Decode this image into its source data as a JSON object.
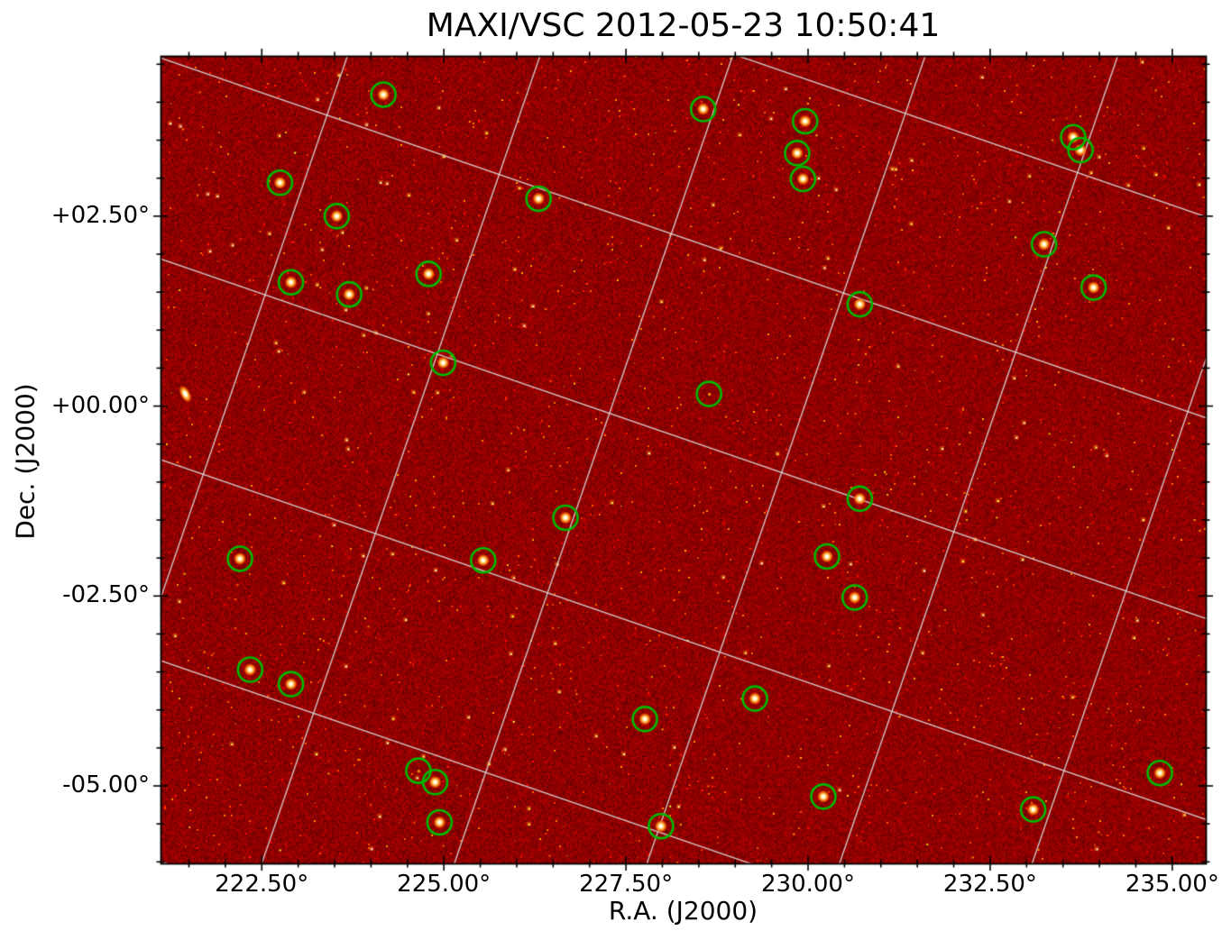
{
  "chart_data": {
    "type": "heatmap",
    "title": "MAXI/VSC 2012-05-23 10:50:41",
    "xlabel": "R.A. (J2000)",
    "ylabel": "Dec. (J2000)",
    "x_axis": {
      "range": [
        221.11,
        235.46
      ],
      "unit": "deg",
      "direction": "increasing-right",
      "major_ticks": [
        {
          "value": 222.5,
          "label": "222.50°"
        },
        {
          "value": 225.0,
          "label": "225.00°"
        },
        {
          "value": 227.5,
          "label": "227.50°"
        },
        {
          "value": 230.0,
          "label": "230.00°"
        },
        {
          "value": 232.5,
          "label": "232.50°"
        },
        {
          "value": 235.0,
          "label": "235.00°"
        }
      ],
      "minor_tick_step": 0.5
    },
    "y_axis": {
      "range": [
        -6.02,
        4.61
      ],
      "unit": "deg",
      "major_ticks": [
        {
          "value": 2.5,
          "label": "+02.50°"
        },
        {
          "value": 0.0,
          "label": "+00.00°"
        },
        {
          "value": -2.5,
          "label": "-02.50°"
        },
        {
          "value": -5.0,
          "label": "-05.00°"
        }
      ],
      "minor_tick_step": 0.5
    },
    "grid": {
      "type": "rotated-celestial",
      "angle_deg": 19,
      "spacing_deg": 2.5,
      "color": "#d9d9d9",
      "on": true
    },
    "colormap": {
      "name": "hot",
      "background_hex": "#8b0000",
      "midtone_hex": "#ff8c00",
      "peak_hex": "#ffffff"
    },
    "marker_style": {
      "shape": "circle",
      "color": "#00bb00",
      "radius_px": 13.5,
      "line_width": 2.6
    },
    "sources": [
      {
        "ra": 224.17,
        "dec": 4.1
      },
      {
        "ra": 228.56,
        "dec": 3.91
      },
      {
        "ra": 229.96,
        "dec": 3.75
      },
      {
        "ra": 229.85,
        "dec": 3.33
      },
      {
        "ra": 229.93,
        "dec": 2.99
      },
      {
        "ra": 233.64,
        "dec": 3.54
      },
      {
        "ra": 233.74,
        "dec": 3.37
      },
      {
        "ra": 222.75,
        "dec": 2.94
      },
      {
        "ra": 223.53,
        "dec": 2.5
      },
      {
        "ra": 226.3,
        "dec": 2.73
      },
      {
        "ra": 233.24,
        "dec": 2.13
      },
      {
        "ra": 233.92,
        "dec": 1.56
      },
      {
        "ra": 222.9,
        "dec": 1.63
      },
      {
        "ra": 223.7,
        "dec": 1.47
      },
      {
        "ra": 224.79,
        "dec": 1.74
      },
      {
        "ra": 230.71,
        "dec": 1.34
      },
      {
        "ra": 224.99,
        "dec": 0.57
      },
      {
        "ra": 228.64,
        "dec": 0.16,
        "faint": true
      },
      {
        "ra": 230.71,
        "dec": -1.22
      },
      {
        "ra": 226.67,
        "dec": -1.47
      },
      {
        "ra": 230.26,
        "dec": -1.98
      },
      {
        "ra": 225.54,
        "dec": -2.03
      },
      {
        "ra": 222.2,
        "dec": -2.01
      },
      {
        "ra": 230.64,
        "dec": -2.52
      },
      {
        "ra": 222.34,
        "dec": -3.47
      },
      {
        "ra": 222.9,
        "dec": -3.66
      },
      {
        "ra": 229.27,
        "dec": -3.85
      },
      {
        "ra": 227.76,
        "dec": -4.12
      },
      {
        "ra": 224.65,
        "dec": -4.8,
        "faint": true
      },
      {
        "ra": 224.88,
        "dec": -4.95
      },
      {
        "ra": 230.21,
        "dec": -5.14
      },
      {
        "ra": 234.83,
        "dec": -4.83
      },
      {
        "ra": 233.09,
        "dec": -5.31
      },
      {
        "ra": 224.94,
        "dec": -5.48
      },
      {
        "ra": 227.98,
        "dec": -5.53
      }
    ],
    "uncircled_features": [
      {
        "ra": 221.45,
        "dec": 0.16
      }
    ]
  }
}
